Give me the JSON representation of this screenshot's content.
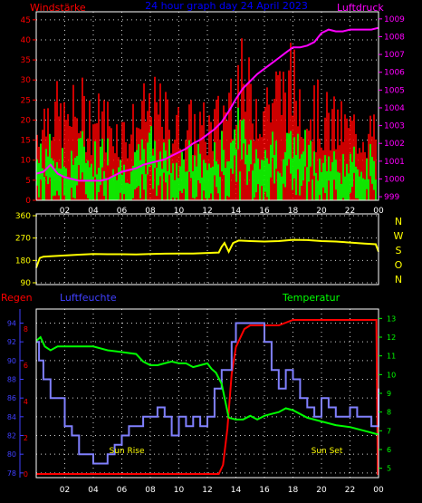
{
  "chart_data": [
    {
      "type": "line",
      "title": "24 hour graph day  24 April 2023",
      "ylabel_left": "Windstärke",
      "ylabel_right": "Luftdruck",
      "x_ticks": [
        "02",
        "04",
        "06",
        "08",
        "10",
        "12",
        "14",
        "16",
        "18",
        "20",
        "22",
        "00"
      ],
      "x_range": [
        0,
        24
      ],
      "y_left_ticks": [
        "0",
        "5",
        "10",
        "15",
        "20",
        "25",
        "30",
        "35",
        "40",
        "45"
      ],
      "y_left_range": [
        0,
        47
      ],
      "y_right_ticks": [
        "999",
        "1000",
        "1001",
        "1002",
        "1003",
        "1004",
        "1005",
        "1006",
        "1007",
        "1008",
        "1009"
      ],
      "y_right_range": [
        998.8,
        1009.4
      ],
      "grid": true,
      "colors": {
        "gust": "#ff0000",
        "wind": "#00ff00",
        "pressure": "#ff00ff",
        "left_axis": "#ff0000",
        "right_axis": "#ff00ff"
      },
      "series": [
        {
          "name": "Luftdruck",
          "x": [
            0,
            0.5,
            1,
            1.5,
            2,
            2.5,
            3,
            3.5,
            4,
            4.5,
            5,
            5.5,
            6,
            6.5,
            7,
            7.5,
            8,
            8.5,
            9,
            9.5,
            10,
            10.5,
            11,
            11.5,
            12,
            12.5,
            13,
            13.5,
            14,
            14.5,
            15,
            15.5,
            16,
            16.5,
            17,
            17.5,
            18,
            18.5,
            19,
            19.5,
            20,
            20.5,
            21,
            21.5,
            22,
            22.5,
            23,
            23.5,
            24
          ],
          "values": [
            1000.3,
            1000.4,
            1000.8,
            1000.3,
            1000.1,
            1000,
            999.9,
            999.9,
            999.9,
            999.9,
            1000,
            1000.2,
            1000.4,
            1000.5,
            1000.6,
            1000.8,
            1000.9,
            1001,
            1001.1,
            1001.3,
            1001.5,
            1001.7,
            1002,
            1002.2,
            1002.5,
            1002.8,
            1003.2,
            1003.8,
            1004.5,
            1005.1,
            1005.5,
            1005.9,
            1006.2,
            1006.5,
            1006.8,
            1007.1,
            1007.4,
            1007.4,
            1007.5,
            1007.7,
            1008.2,
            1008.4,
            1008.3,
            1008.3,
            1008.4,
            1008.4,
            1008.4,
            1008.4,
            1008.5
          ]
        },
        {
          "name": "wind-mean",
          "x": [
            0,
            1,
            2,
            3,
            4,
            5,
            6,
            7,
            8,
            9,
            10,
            11,
            12,
            13,
            14,
            15,
            16,
            17,
            18,
            19,
            20,
            21,
            22,
            23,
            24
          ],
          "values": [
            10,
            12,
            9,
            13,
            11,
            12,
            8,
            9,
            14,
            12,
            10,
            11,
            9,
            12,
            17,
            13,
            13,
            13,
            14,
            12,
            10,
            9,
            9,
            10,
            10
          ]
        },
        {
          "name": "wind-gust",
          "x": [
            0,
            1,
            2,
            3,
            4,
            5,
            6,
            7,
            8,
            9,
            10,
            11,
            12,
            13,
            14,
            15,
            16,
            17,
            18,
            19,
            20,
            21,
            22,
            23,
            24
          ],
          "values": [
            16,
            23,
            18,
            22,
            20,
            19,
            16,
            18,
            22,
            20,
            17,
            18,
            17,
            20,
            30,
            25,
            24,
            26,
            28,
            23,
            20,
            18,
            17,
            17,
            15
          ]
        }
      ]
    },
    {
      "type": "line",
      "title": "",
      "y_ticks": [
        "90",
        "180",
        "270",
        "360"
      ],
      "y_range": [
        90,
        360
      ],
      "compass_labels": [
        "N",
        "W",
        "S",
        "O",
        "N"
      ],
      "grid": true,
      "colors": {
        "direction": "#ffff00",
        "compass": "#ffff00"
      },
      "series": [
        {
          "name": "direction",
          "x": [
            0,
            0.25,
            0.5,
            1,
            2,
            3,
            4,
            5,
            6,
            7,
            8,
            9,
            10,
            11,
            12,
            12.8,
            13,
            13.2,
            13.5,
            13.8,
            14.2,
            15,
            16,
            17,
            18,
            19,
            20,
            21,
            22,
            23,
            23.8,
            24
          ],
          "values": [
            150,
            190,
            195,
            197,
            200,
            203,
            206,
            205,
            205,
            204,
            206,
            207,
            208,
            208,
            210,
            212,
            235,
            250,
            215,
            250,
            260,
            258,
            256,
            258,
            263,
            262,
            258,
            256,
            252,
            248,
            245,
            215
          ]
        }
      ]
    },
    {
      "type": "line",
      "title": "",
      "ylabel_far_left": "Regen",
      "ylabel_left": "Luftfeuchte",
      "ylabel_right": "Temperatur",
      "y_regen_ticks": [
        "0",
        "2",
        "4",
        "6",
        "8"
      ],
      "y_humidity_ticks": [
        "78",
        "80",
        "82",
        "84",
        "86",
        "88",
        "90",
        "92",
        "94"
      ],
      "y_humidity_range": [
        77.5,
        95.5
      ],
      "y_temp_ticks": [
        "5",
        "6",
        "7",
        "8",
        "9",
        "10",
        "11",
        "12",
        "13"
      ],
      "y_temp_range": [
        4.5,
        13.5
      ],
      "annotations": [
        "Sun Rise",
        "Sun Set"
      ],
      "grid": true,
      "colors": {
        "regen": "#ff0000",
        "humidity": "#8080ff",
        "temperature": "#00ff00",
        "temp_axis": "#00ff00",
        "hum_axis": "#4040ff"
      },
      "series": [
        {
          "name": "Luftfeuchte",
          "x": [
            0,
            0.2,
            0.5,
            1,
            1.5,
            2,
            2.5,
            3,
            3.5,
            4,
            4.5,
            5,
            5.5,
            6,
            6.5,
            7,
            7.5,
            8,
            8.5,
            9,
            9.5,
            10,
            10.5,
            11,
            11.5,
            12,
            12.5,
            13,
            13.3,
            13.7,
            14,
            14.5,
            15,
            15.5,
            16,
            16.5,
            17,
            17.5,
            18,
            18.5,
            19,
            19.5,
            20,
            20.5,
            21,
            21.5,
            22,
            22.5,
            23,
            23.5,
            24
          ],
          "values": [
            92,
            90,
            88,
            86,
            86,
            83,
            82,
            80,
            80,
            79,
            79,
            80,
            81,
            82,
            83,
            83,
            84,
            84,
            85,
            84,
            82,
            84,
            83,
            84,
            83,
            84,
            87,
            89,
            89,
            92,
            94,
            94,
            94,
            94,
            92,
            89,
            87,
            89,
            88,
            86,
            85,
            84,
            86,
            85,
            84,
            84,
            85,
            84,
            84,
            83,
            87
          ]
        },
        {
          "name": "Temperatur",
          "x": [
            0,
            0.3,
            0.6,
            1,
            1.5,
            2,
            3,
            4,
            5,
            6,
            7,
            7.5,
            8,
            8.5,
            9,
            9.5,
            10,
            10.5,
            11,
            11.5,
            12,
            12.3,
            12.6,
            13,
            13.5,
            14,
            14.5,
            15,
            15.5,
            16,
            16.5,
            17,
            17.5,
            18,
            19,
            20,
            21,
            22,
            23,
            24
          ],
          "values": [
            11.8,
            12,
            11.5,
            11.3,
            11.5,
            11.5,
            11.5,
            11.5,
            11.3,
            11.2,
            11.1,
            10.7,
            10.5,
            10.5,
            10.6,
            10.7,
            10.6,
            10.6,
            10.4,
            10.5,
            10.6,
            10.3,
            10.1,
            9.5,
            7.7,
            7.6,
            7.6,
            7.8,
            7.6,
            7.8,
            7.9,
            8,
            8.2,
            8.1,
            7.7,
            7.5,
            7.3,
            7.2,
            7,
            6.8
          ]
        },
        {
          "name": "Regen",
          "x": [
            0,
            12.8,
            13.1,
            13.4,
            13.7,
            14,
            14.6,
            15,
            16,
            17,
            18,
            19,
            20,
            21,
            22,
            23,
            23.85,
            23.95,
            24
          ],
          "values": [
            0,
            0,
            0.5,
            2.5,
            5.5,
            7,
            8,
            8.2,
            8.2,
            8.2,
            8.5,
            8.5,
            8.5,
            8.5,
            8.5,
            8.5,
            8.5,
            0,
            0
          ]
        }
      ]
    }
  ]
}
